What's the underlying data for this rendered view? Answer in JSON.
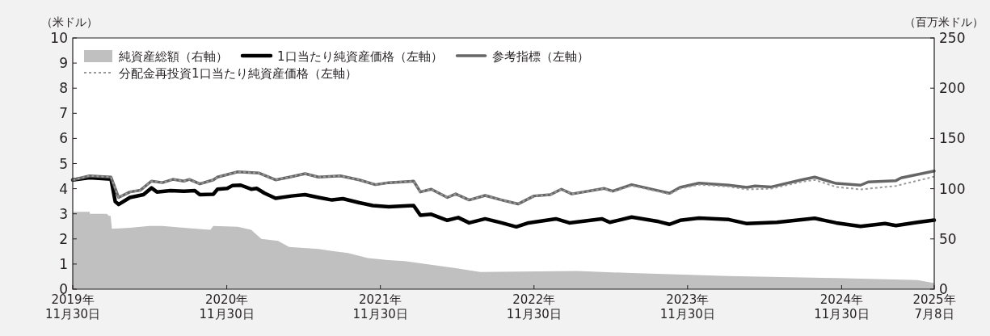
{
  "chart_data": {
    "type": "line",
    "ylabel": "（米ドル）",
    "y2label": "（百万米ドル）",
    "legend": "top left",
    "xlim": [
      "2019-11-30",
      "2025-07-08"
    ],
    "xticks": [
      {
        "value": "2019-11-30",
        "label": "2019年\n11月30日"
      },
      {
        "value": "2020-11-30",
        "label": "2020年\n11月30日"
      },
      {
        "value": "2021-11-30",
        "label": "2021年\n11月30日"
      },
      {
        "value": "2022-11-30",
        "label": "2022年\n11月30日"
      },
      {
        "value": "2023-11-30",
        "label": "2023年\n11月30日"
      },
      {
        "value": "2024-11-30",
        "label": "2024年\n11月30日"
      },
      {
        "value": "2025-07-08",
        "label": "2025年\n7月8日"
      }
    ],
    "ylim": [
      0,
      10
    ],
    "yticks": [
      0,
      1,
      2,
      3,
      4,
      5,
      6,
      7,
      8,
      9,
      10
    ],
    "y2lim": [
      0,
      250
    ],
    "y2ticks": [
      0,
      50,
      100,
      150,
      200,
      250
    ],
    "series": [
      {
        "name": "純資産総額（右軸）",
        "type": "area",
        "axis": "y2",
        "color": "#bfc0bf",
        "x": [
          "2019-11-30",
          "2020-01-09",
          "2020-01-10",
          "2020-02-19",
          "2020-02-24",
          "2020-02-28",
          "2020-03-02",
          "2020-04-14",
          "2020-05-30",
          "2020-06-30",
          "2020-08-20",
          "2020-10-22",
          "2020-10-29",
          "2020-12-26",
          "2021-01-27",
          "2021-02-20",
          "2021-04-01",
          "2021-04-27",
          "2021-07-06",
          "2021-08-07",
          "2021-09-14",
          "2021-10-31",
          "2021-12-18",
          "2022-01-26",
          "2022-04-23",
          "2022-05-28",
          "2022-07-25",
          "2023-03-13",
          "2023-07-20",
          "2024-03-05",
          "2024-11-17",
          "2025-05-29",
          "2025-07-08"
        ],
        "values": [
          77,
          77,
          75,
          75,
          73,
          73,
          60,
          61,
          63,
          63,
          61,
          59,
          63,
          62,
          59,
          50,
          48,
          42,
          40,
          38,
          36,
          31,
          29,
          28,
          23,
          21,
          17,
          18,
          16,
          13,
          11,
          9,
          6
        ]
      },
      {
        "name": "1口当たり純資産価格（左軸）",
        "axis": "y",
        "color": "#000000",
        "x": [
          "2019-11-30",
          "2020-01-09",
          "2020-02-29",
          "2020-03-10",
          "2020-03-18",
          "2020-04-14",
          "2020-05-16",
          "2020-06-04",
          "2020-06-17",
          "2020-07-19",
          "2020-08-20",
          "2020-09-15",
          "2020-09-27",
          "2020-10-29",
          "2020-11-08",
          "2020-12-01",
          "2020-12-13",
          "2021-01-02",
          "2021-01-27",
          "2021-02-09",
          "2021-02-28",
          "2021-03-26",
          "2021-05-03",
          "2021-06-04",
          "2021-07-06",
          "2021-08-07",
          "2021-09-02",
          "2021-10-11",
          "2021-11-12",
          "2021-12-20",
          "2022-02-17",
          "2022-03-05",
          "2022-03-31",
          "2022-05-08",
          "2022-06-03",
          "2022-06-29",
          "2022-08-06",
          "2022-09-14",
          "2022-10-19",
          "2022-11-17",
          "2023-01-21",
          "2023-02-22",
          "2023-05-10",
          "2023-05-29",
          "2023-07-20",
          "2023-09-22",
          "2023-10-18",
          "2023-11-12",
          "2023-12-27",
          "2024-03-07",
          "2024-04-19",
          "2024-06-29",
          "2024-09-27",
          "2024-11-17",
          "2025-01-14",
          "2025-03-13",
          "2025-04-08",
          "2025-05-29",
          "2025-07-08"
        ],
        "values": [
          4.35,
          4.44,
          4.38,
          3.49,
          3.37,
          3.65,
          3.76,
          4.03,
          3.87,
          3.92,
          3.9,
          3.92,
          3.76,
          3.78,
          3.98,
          4.01,
          4.12,
          4.14,
          3.98,
          4.01,
          3.82,
          3.62,
          3.71,
          3.76,
          3.65,
          3.55,
          3.6,
          3.44,
          3.33,
          3.28,
          3.33,
          2.94,
          2.98,
          2.74,
          2.85,
          2.64,
          2.8,
          2.64,
          2.48,
          2.64,
          2.8,
          2.64,
          2.8,
          2.66,
          2.87,
          2.69,
          2.58,
          2.74,
          2.83,
          2.77,
          2.61,
          2.66,
          2.82,
          2.64,
          2.5,
          2.61,
          2.53,
          2.66,
          2.75
        ]
      },
      {
        "name": "参考指標（左軸）",
        "axis": "y",
        "color": "#666666",
        "x": [
          "2019-11-30",
          "2020-01-09",
          "2020-02-29",
          "2020-03-18",
          "2020-04-14",
          "2020-05-09",
          "2020-06-04",
          "2020-06-30",
          "2020-07-25",
          "2020-08-20",
          "2020-09-02",
          "2020-09-27",
          "2020-10-29",
          "2020-11-08",
          "2020-12-26",
          "2021-02-15",
          "2021-03-26",
          "2021-05-03",
          "2021-06-04",
          "2021-07-06",
          "2021-08-27",
          "2021-10-11",
          "2021-11-18",
          "2021-12-20",
          "2022-02-17",
          "2022-03-05",
          "2022-03-31",
          "2022-05-08",
          "2022-05-28",
          "2022-06-29",
          "2022-08-06",
          "2022-09-14",
          "2022-10-23",
          "2022-11-30",
          "2023-01-08",
          "2023-02-03",
          "2023-02-28",
          "2023-05-16",
          "2023-06-05",
          "2023-07-20",
          "2023-09-22",
          "2023-10-18",
          "2023-11-12",
          "2023-12-27",
          "2024-03-07",
          "2024-04-19",
          "2024-05-08",
          "2024-06-16",
          "2024-08-26",
          "2024-09-27",
          "2024-11-17",
          "2025-01-14",
          "2025-02-02",
          "2025-04-08",
          "2025-04-20",
          "2025-07-08"
        ],
        "values": [
          4.35,
          4.51,
          4.46,
          3.65,
          3.87,
          3.94,
          4.3,
          4.24,
          4.37,
          4.3,
          4.37,
          4.19,
          4.35,
          4.46,
          4.67,
          4.62,
          4.35,
          4.48,
          4.6,
          4.46,
          4.51,
          4.35,
          4.16,
          4.24,
          4.3,
          3.87,
          3.98,
          3.65,
          3.79,
          3.55,
          3.73,
          3.55,
          3.39,
          3.71,
          3.76,
          3.98,
          3.79,
          4.01,
          3.9,
          4.16,
          3.92,
          3.82,
          4.05,
          4.22,
          4.14,
          4.05,
          4.11,
          4.07,
          4.35,
          4.46,
          4.21,
          4.14,
          4.27,
          4.32,
          4.43,
          4.7
        ]
      },
      {
        "name": "分配金再投資1口当たり純資産価格（左軸）",
        "axis": "y",
        "color": "#999999",
        "line_style": "dotted",
        "x": [
          "2019-11-30",
          "2020-01-09",
          "2020-02-29",
          "2020-03-18",
          "2020-04-14",
          "2020-05-09",
          "2020-06-04",
          "2020-06-30",
          "2020-07-25",
          "2020-08-20",
          "2020-09-02",
          "2020-09-27",
          "2020-10-29",
          "2020-11-08",
          "2020-12-26",
          "2021-02-15",
          "2021-03-26",
          "2021-05-03",
          "2021-06-04",
          "2021-07-06",
          "2021-08-27",
          "2021-10-11",
          "2021-11-18",
          "2021-12-20",
          "2022-02-17",
          "2022-03-05",
          "2022-03-31",
          "2022-05-08",
          "2022-05-28",
          "2022-06-29",
          "2022-08-06",
          "2022-09-14",
          "2022-10-23",
          "2022-11-30",
          "2023-01-08",
          "2023-02-03",
          "2023-02-28",
          "2023-05-16",
          "2023-06-05",
          "2023-07-20",
          "2023-09-22",
          "2023-10-18",
          "2023-11-12",
          "2023-12-27",
          "2024-03-07",
          "2024-04-19",
          "2024-06-16",
          "2024-08-26",
          "2024-09-27",
          "2024-11-17",
          "2025-01-14",
          "2025-04-08",
          "2025-07-08"
        ],
        "values": [
          4.35,
          4.51,
          4.46,
          3.65,
          3.87,
          3.94,
          4.3,
          4.24,
          4.37,
          4.3,
          4.37,
          4.19,
          4.35,
          4.46,
          4.67,
          4.62,
          4.35,
          4.48,
          4.6,
          4.46,
          4.51,
          4.35,
          4.16,
          4.24,
          4.3,
          3.87,
          3.98,
          3.65,
          3.79,
          3.55,
          3.73,
          3.55,
          3.39,
          3.71,
          3.76,
          3.98,
          3.79,
          4.01,
          3.87,
          4.12,
          3.88,
          3.78,
          4.0,
          4.16,
          4.08,
          3.97,
          4.0,
          4.27,
          4.35,
          4.07,
          3.97,
          4.11,
          4.48
        ]
      }
    ]
  }
}
